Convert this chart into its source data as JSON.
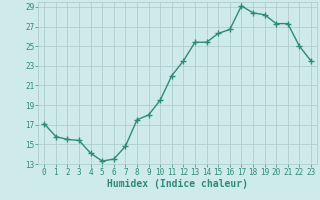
{
  "xlabel": "Humidex (Indice chaleur)",
  "x": [
    0,
    1,
    2,
    3,
    4,
    5,
    6,
    7,
    8,
    9,
    10,
    11,
    12,
    13,
    14,
    15,
    16,
    17,
    18,
    19,
    20,
    21,
    22,
    23
  ],
  "y": [
    17.1,
    15.8,
    15.5,
    15.4,
    14.1,
    13.3,
    13.5,
    14.8,
    17.5,
    18.0,
    19.5,
    22.0,
    23.5,
    25.4,
    25.4,
    26.3,
    26.7,
    29.1,
    28.4,
    28.2,
    27.3,
    27.3,
    25.0,
    23.5
  ],
  "line_color": "#2e8b7a",
  "marker": "+",
  "marker_size": 4,
  "bg_color": "#ceeaea",
  "grid_color": "#aac8c8",
  "ylim": [
    13,
    29.5
  ],
  "xlim": [
    -0.5,
    23.5
  ],
  "yticks": [
    13,
    15,
    17,
    19,
    21,
    23,
    25,
    27,
    29
  ],
  "xticks": [
    0,
    1,
    2,
    3,
    4,
    5,
    6,
    7,
    8,
    9,
    10,
    11,
    12,
    13,
    14,
    15,
    16,
    17,
    18,
    19,
    20,
    21,
    22,
    23
  ],
  "tick_fontsize": 5.5,
  "xlabel_fontsize": 7,
  "line_width": 1.0
}
